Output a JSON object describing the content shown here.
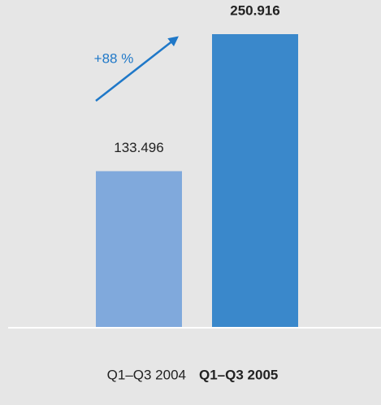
{
  "chart_data": {
    "type": "bar",
    "categories": [
      "Q1–Q3 2004",
      "Q1–Q3 2005"
    ],
    "series": [
      {
        "values": [
          133496,
          250916
        ],
        "value_labels": [
          "133.496",
          "250.916"
        ],
        "colors": [
          "#80a9dc",
          "#3a88cb"
        ]
      }
    ],
    "annotation": "+88 %"
  }
}
